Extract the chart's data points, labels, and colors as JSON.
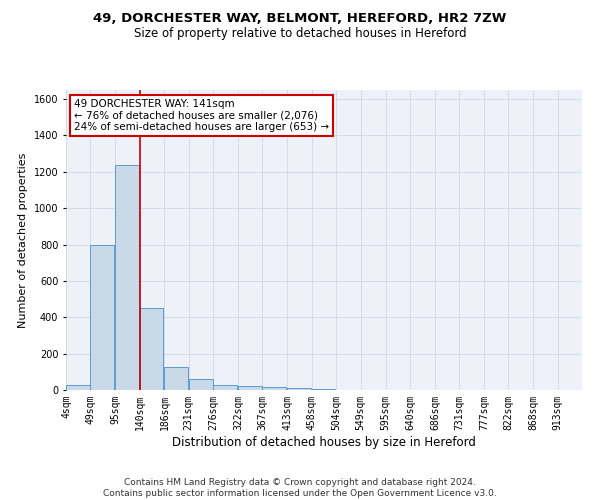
{
  "title1": "49, DORCHESTER WAY, BELMONT, HEREFORD, HR2 7ZW",
  "title2": "Size of property relative to detached houses in Hereford",
  "xlabel": "Distribution of detached houses by size in Hereford",
  "ylabel": "Number of detached properties",
  "bin_labels": [
    "4sqm",
    "49sqm",
    "95sqm",
    "140sqm",
    "186sqm",
    "231sqm",
    "276sqm",
    "322sqm",
    "367sqm",
    "413sqm",
    "458sqm",
    "504sqm",
    "549sqm",
    "595sqm",
    "640sqm",
    "686sqm",
    "731sqm",
    "777sqm",
    "822sqm",
    "868sqm",
    "913sqm"
  ],
  "bin_edges": [
    4,
    49,
    95,
    140,
    186,
    231,
    276,
    322,
    367,
    413,
    458,
    504,
    549,
    595,
    640,
    686,
    731,
    777,
    822,
    868,
    913
  ],
  "bar_heights": [
    25,
    800,
    1240,
    450,
    125,
    60,
    30,
    20,
    15,
    10,
    8,
    0,
    0,
    0,
    0,
    0,
    0,
    0,
    0,
    0,
    0
  ],
  "bar_color": "#c9d9e8",
  "bar_edge_color": "#5b9bd5",
  "grid_color": "#d0d8e8",
  "background_color": "#eef2f8",
  "vline_x": 141,
  "vline_color": "#cc0000",
  "annotation_line1": "49 DORCHESTER WAY: 141sqm",
  "annotation_line2": "← 76% of detached houses are smaller (2,076)",
  "annotation_line3": "24% of semi-detached houses are larger (653) →",
  "annotation_box_color": "#cc0000",
  "ylim": [
    0,
    1650
  ],
  "yticks": [
    0,
    200,
    400,
    600,
    800,
    1000,
    1200,
    1400,
    1600
  ],
  "footer": "Contains HM Land Registry data © Crown copyright and database right 2024.\nContains public sector information licensed under the Open Government Licence v3.0.",
  "title1_fontsize": 9.5,
  "title2_fontsize": 8.5,
  "xlabel_fontsize": 8.5,
  "ylabel_fontsize": 8,
  "tick_fontsize": 7,
  "annotation_fontsize": 7.5,
  "footer_fontsize": 6.5
}
